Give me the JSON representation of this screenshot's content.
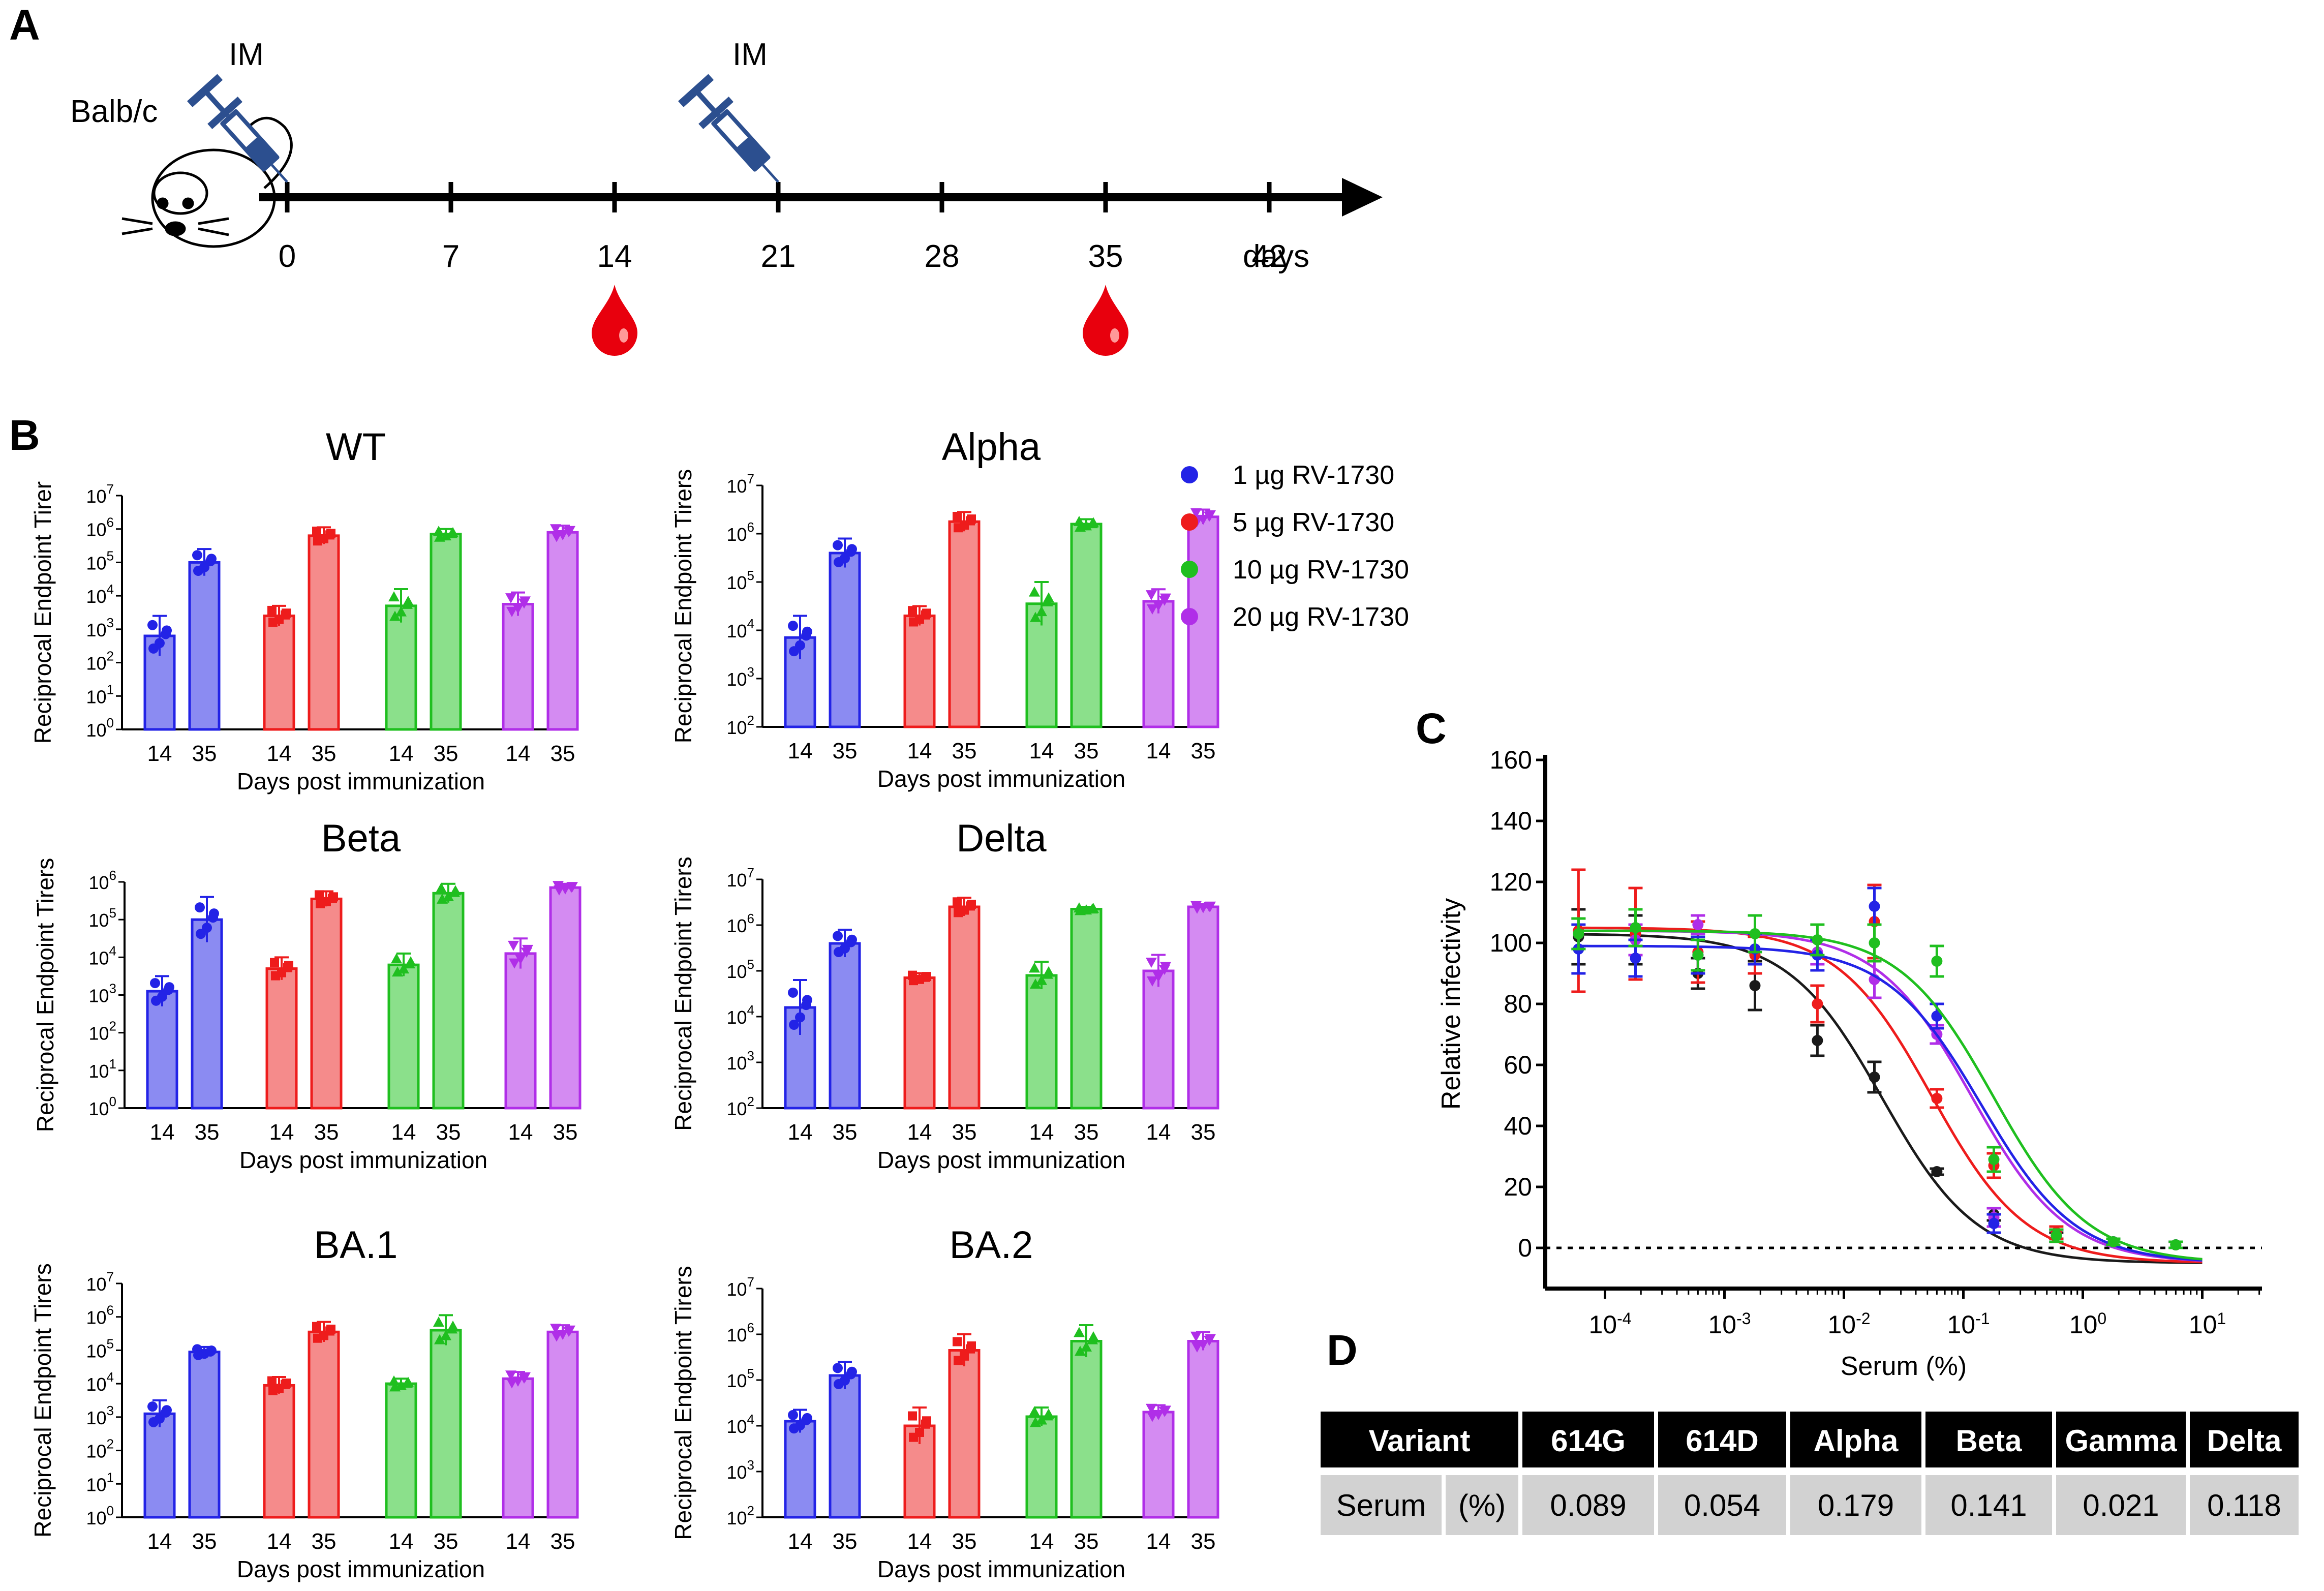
{
  "panel_letters": [
    "A",
    "B",
    "C",
    "D"
  ],
  "timeline": {
    "mouse_label": "Balb/c",
    "injection_label": "IM",
    "days": [
      "0",
      "7",
      "14",
      "21",
      "28",
      "35",
      "42"
    ],
    "days_unit": "days",
    "injection_days": [
      0,
      21
    ],
    "bleed_days": [
      14,
      35
    ],
    "colors": {
      "syringe": "#2c4f8f",
      "blood": "#e8000d"
    }
  },
  "legend": [
    {
      "label": "1 µg RV-1730",
      "color": "#2323e6"
    },
    {
      "label": "5 µg RV-1730",
      "color": "#ee1c1c"
    },
    {
      "label": "10 µg RV-1730",
      "color": "#1fbf1f"
    },
    {
      "label": "20 µg RV-1730",
      "color": "#b02ee8"
    }
  ],
  "chart_data": [
    {
      "type": "bar",
      "title": "WT",
      "ylabel": "Reciprocal Endpoint Tirer",
      "xlabel": "Days post immunization",
      "ylim_log10": [
        0,
        7
      ],
      "categories": [
        "14",
        "35",
        "14",
        "35",
        "14",
        "35",
        "14",
        "35"
      ],
      "series": [
        {
          "name": "1 µg RV-1730",
          "values_log10": [
            2.8,
            5.0
          ],
          "err_log10": [
            0.6,
            0.4
          ]
        },
        {
          "name": "5 µg RV-1730",
          "values_log10": [
            3.4,
            5.8
          ],
          "err_log10": [
            0.3,
            0.25
          ]
        },
        {
          "name": "10 µg RV-1730",
          "values_log10": [
            3.7,
            5.85
          ],
          "err_log10": [
            0.5,
            0.15
          ]
        },
        {
          "name": "20 µg RV-1730",
          "values_log10": [
            3.75,
            5.9
          ],
          "err_log10": [
            0.35,
            0.2
          ]
        }
      ]
    },
    {
      "type": "bar",
      "title": "Alpha",
      "ylabel": "Reciprocal Endpoint Tirers",
      "xlabel": "Days post immunization",
      "ylim_log10": [
        2,
        7
      ],
      "categories": [
        "14",
        "35",
        "14",
        "35",
        "14",
        "35",
        "14",
        "35"
      ],
      "series": [
        {
          "name": "1 µg RV-1730",
          "values_log10": [
            3.85,
            5.6
          ],
          "err_log10": [
            0.45,
            0.3
          ]
        },
        {
          "name": "5 µg RV-1730",
          "values_log10": [
            4.3,
            6.25
          ],
          "err_log10": [
            0.2,
            0.2
          ]
        },
        {
          "name": "10 µg RV-1730",
          "values_log10": [
            4.55,
            6.2
          ],
          "err_log10": [
            0.45,
            0.1
          ]
        },
        {
          "name": "20 µg RV-1730",
          "values_log10": [
            4.6,
            6.35
          ],
          "err_log10": [
            0.25,
            0.15
          ]
        }
      ]
    },
    {
      "type": "bar",
      "title": "Beta",
      "ylabel": "Reciprocal Endpoint Tirers",
      "xlabel": "Days post immunization",
      "ylim_log10": [
        0,
        6
      ],
      "categories": [
        "14",
        "35",
        "14",
        "35",
        "14",
        "35",
        "14",
        "35"
      ],
      "series": [
        {
          "name": "1 µg RV-1730",
          "values_log10": [
            3.1,
            5.0
          ],
          "err_log10": [
            0.4,
            0.6
          ]
        },
        {
          "name": "5 µg RV-1730",
          "values_log10": [
            3.7,
            5.55
          ],
          "err_log10": [
            0.3,
            0.2
          ]
        },
        {
          "name": "10 µg RV-1730",
          "values_log10": [
            3.8,
            5.7
          ],
          "err_log10": [
            0.3,
            0.25
          ]
        },
        {
          "name": "20 µg RV-1730",
          "values_log10": [
            4.1,
            5.85
          ],
          "err_log10": [
            0.4,
            0.1
          ]
        }
      ]
    },
    {
      "type": "bar",
      "title": "Delta",
      "ylabel": "Reciprocal Endpoint Tirers",
      "xlabel": "Days post immunization",
      "ylim_log10": [
        2,
        7
      ],
      "categories": [
        "14",
        "35",
        "14",
        "35",
        "14",
        "35",
        "14",
        "35"
      ],
      "series": [
        {
          "name": "1 µg RV-1730",
          "values_log10": [
            4.2,
            5.6
          ],
          "err_log10": [
            0.6,
            0.3
          ]
        },
        {
          "name": "5 µg RV-1730",
          "values_log10": [
            4.85,
            6.4
          ],
          "err_log10": [
            0.1,
            0.2
          ]
        },
        {
          "name": "10 µg RV-1730",
          "values_log10": [
            4.9,
            6.35
          ],
          "err_log10": [
            0.3,
            0.05
          ]
        },
        {
          "name": "20 µg RV-1730",
          "values_log10": [
            5.0,
            6.4
          ],
          "err_log10": [
            0.35,
            0.05
          ]
        }
      ]
    },
    {
      "type": "bar",
      "title": "BA.1",
      "ylabel": "Reciprocal Endpoint Tirers",
      "xlabel": "Days post immunization",
      "ylim_log10": [
        0,
        7
      ],
      "categories": [
        "14",
        "35",
        "14",
        "35",
        "14",
        "35",
        "14",
        "35"
      ],
      "series": [
        {
          "name": "1 µg RV-1730",
          "values_log10": [
            3.1,
            4.95
          ],
          "err_log10": [
            0.4,
            0.15
          ]
        },
        {
          "name": "5 µg RV-1730",
          "values_log10": [
            3.95,
            5.55
          ],
          "err_log10": [
            0.25,
            0.3
          ]
        },
        {
          "name": "10 µg RV-1730",
          "values_log10": [
            4.0,
            5.6
          ],
          "err_log10": [
            0.15,
            0.45
          ]
        },
        {
          "name": "20 µg RV-1730",
          "values_log10": [
            4.15,
            5.55
          ],
          "err_log10": [
            0.2,
            0.2
          ]
        }
      ]
    },
    {
      "type": "bar",
      "title": "BA.2",
      "ylabel": "Reciprocal Endpoint Tirers",
      "xlabel": "Days post immunization",
      "ylim_log10": [
        2,
        7
      ],
      "categories": [
        "14",
        "35",
        "14",
        "35",
        "14",
        "35",
        "14",
        "35"
      ],
      "series": [
        {
          "name": "1 µg RV-1730",
          "values_log10": [
            4.1,
            5.1
          ],
          "err_log10": [
            0.25,
            0.3
          ]
        },
        {
          "name": "5 µg RV-1730",
          "values_log10": [
            4.0,
            5.65
          ],
          "err_log10": [
            0.4,
            0.35
          ]
        },
        {
          "name": "10 µg RV-1730",
          "values_log10": [
            4.2,
            5.85
          ],
          "err_log10": [
            0.2,
            0.35
          ]
        },
        {
          "name": "20 µg RV-1730",
          "values_log10": [
            4.3,
            5.85
          ],
          "err_log10": [
            0.15,
            0.2
          ]
        }
      ]
    },
    {
      "type": "line",
      "title": "",
      "xlabel": "Serum (%)",
      "ylabel": "Relative infectivity",
      "xscale": "log",
      "xlim_log10": [
        -4.5,
        1.5
      ],
      "ylim": [
        0,
        160
      ],
      "yticks": [
        "0",
        "20",
        "40",
        "60",
        "80",
        "100",
        "120",
        "140",
        "160"
      ],
      "x_percent": [
        6e-05,
        0.00018,
        0.0006,
        0.0018,
        0.006,
        0.018,
        0.06,
        0.18,
        0.6,
        1.8,
        6
      ],
      "series": [
        {
          "name": "black",
          "color": "#1a1a1a",
          "ic50": 0.021,
          "values": [
            102,
            101,
            90,
            86,
            68,
            56,
            25,
            11,
            4,
            2,
            1
          ],
          "err": [
            9,
            8,
            5,
            8,
            5,
            5,
            1,
            2,
            1,
            1,
            1
          ]
        },
        {
          "name": "red",
          "color": "#ee1c1c",
          "ic50": 0.054,
          "values": [
            104,
            103,
            97,
            96,
            80,
            107,
            49,
            27,
            5,
            2,
            1
          ],
          "err": [
            20,
            15,
            10,
            6,
            6,
            12,
            3,
            4,
            2,
            1,
            1
          ]
        },
        {
          "name": "purple",
          "color": "#b02ee8",
          "ic50": 0.118,
          "values": [
            103,
            101,
            106,
            98,
            97,
            88,
            70,
            10,
            4,
            2,
            1
          ],
          "err": [
            5,
            5,
            3,
            5,
            4,
            6,
            3,
            3,
            2,
            1,
            1
          ]
        },
        {
          "name": "blue",
          "color": "#2323e6",
          "ic50": 0.141,
          "values": [
            98,
            95,
            96,
            98,
            96,
            112,
            76,
            8,
            4,
            2,
            1
          ],
          "err": [
            8,
            6,
            6,
            5,
            5,
            6,
            4,
            3,
            2,
            1,
            1
          ]
        },
        {
          "name": "green",
          "color": "#1fbf1f",
          "ic50": 0.179,
          "values": [
            103,
            105,
            96,
            103,
            101,
            100,
            94,
            29,
            4,
            2,
            1
          ],
          "err": [
            5,
            6,
            5,
            6,
            5,
            6,
            5,
            4,
            2,
            1,
            1
          ]
        }
      ]
    },
    {
      "type": "table",
      "headers": [
        "Variant",
        "614G",
        "614D",
        "Alpha",
        "Beta",
        "Gamma",
        "Delta"
      ],
      "row_label": "Serum",
      "row_unit": "(%)",
      "values": [
        "0.089",
        "0.054",
        "0.179",
        "0.141",
        "0.021",
        "0.118"
      ]
    }
  ]
}
